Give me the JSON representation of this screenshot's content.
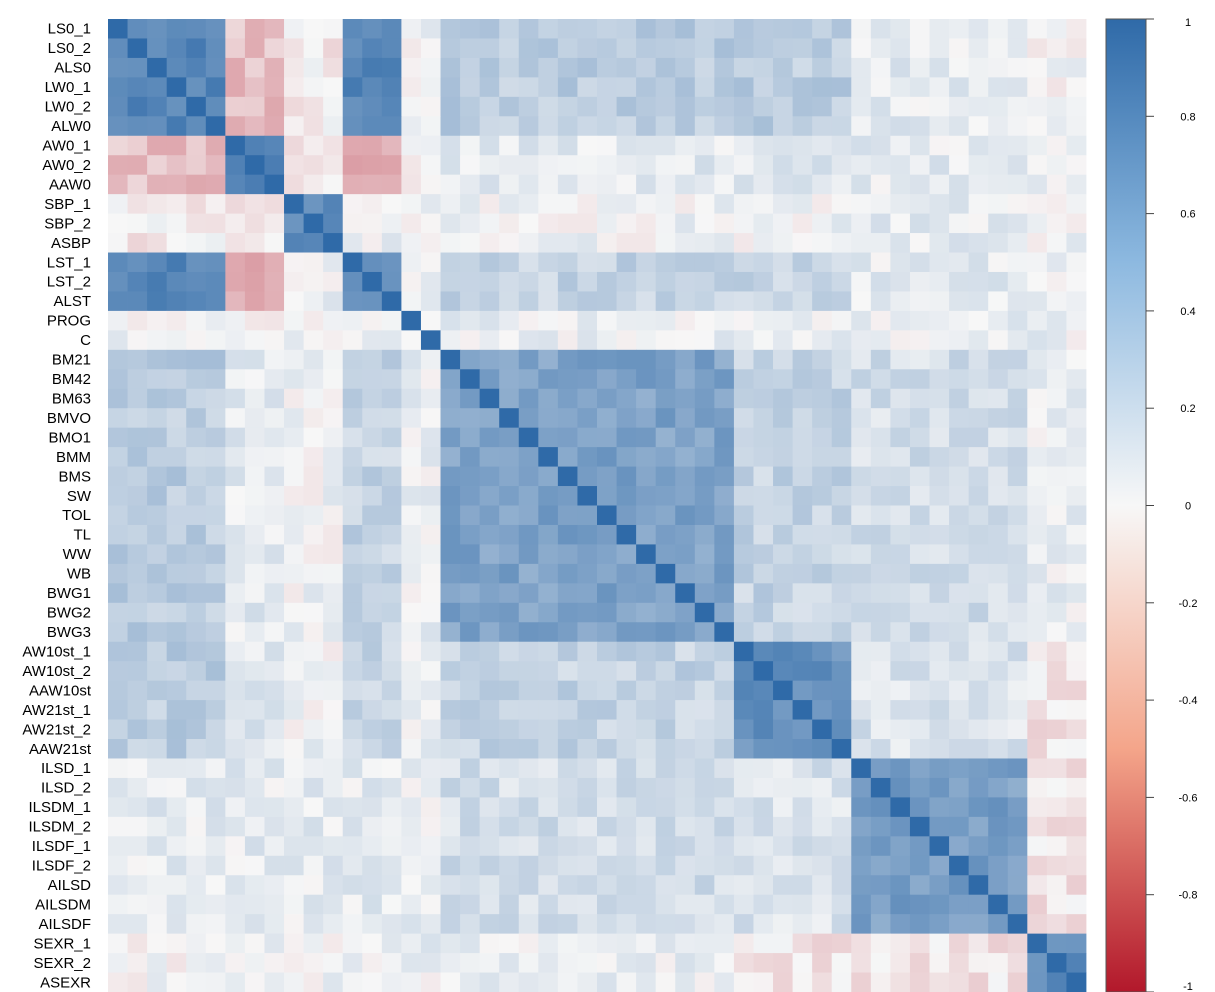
{
  "chart_data": {
    "type": "heatmap",
    "title": "",
    "xlabel": "",
    "ylabel": "",
    "row_labels": [
      "LS0_1",
      "LS0_2",
      "ALS0",
      "LW0_1",
      "LW0_2",
      "ALW0",
      "AW0_1",
      "AW0_2",
      "AAW0",
      "SBP_1",
      "SBP_2",
      "ASBP",
      "LST_1",
      "LST_2",
      "ALST",
      "PROG",
      "C",
      "BM21",
      "BM42",
      "BM63",
      "BMVO",
      "BMO1",
      "BMM",
      "BMS",
      "SW",
      "TOL",
      "TL",
      "WW",
      "WB",
      "BWG1",
      "BWG2",
      "BWG3",
      "AW10st_1",
      "AW10st_2",
      "AAW10st",
      "AW21st_1",
      "AW21st_2",
      "AAW21st",
      "ILSD_1",
      "ILSD_2",
      "ILSDM_1",
      "ILSDM_2",
      "ILSDF_1",
      "ILSDF_2",
      "AILSD",
      "AILSDM",
      "AILSDF",
      "SEXR_1",
      "SEXR_2",
      "ASEXR"
    ],
    "value_range": [
      -1,
      1
    ],
    "colorbar": {
      "ticks": [
        1,
        0.8,
        0.6,
        0.4,
        0.2,
        0,
        -0.2,
        -0.4,
        -0.6,
        -0.8,
        -1
      ],
      "tick_labels": [
        "1",
        "0.8",
        "0.6",
        "0.4",
        "0.2",
        "0",
        "-0.2",
        "-0.4",
        "-0.6",
        "-0.8",
        "-1"
      ],
      "colors": {
        "neg": "#b2182b",
        "mid": "#f7f7f7",
        "pos": "#2f6aa8"
      },
      "placement": "right"
    },
    "blocks": [
      {
        "rows": [
          0,
          5
        ],
        "cols": [
          0,
          5
        ],
        "value": 0.82
      },
      {
        "rows": [
          6,
          8
        ],
        "cols": [
          6,
          8
        ],
        "value": 0.78
      },
      {
        "rows": [
          9,
          11
        ],
        "cols": [
          9,
          11
        ],
        "value": 0.8
      },
      {
        "rows": [
          12,
          14
        ],
        "cols": [
          12,
          14
        ],
        "value": 0.8
      },
      {
        "rows": [
          0,
          5
        ],
        "cols": [
          12,
          14
        ],
        "value": 0.78
      },
      {
        "rows": [
          0,
          5
        ],
        "cols": [
          6,
          8
        ],
        "value": -0.25
      },
      {
        "rows": [
          6,
          8
        ],
        "cols": [
          12,
          14
        ],
        "value": -0.3
      },
      {
        "rows": [
          0,
          5
        ],
        "cols": [
          9,
          11
        ],
        "value": -0.05
      },
      {
        "rows": [
          6,
          8
        ],
        "cols": [
          9,
          11
        ],
        "value": -0.1
      },
      {
        "rows": [
          9,
          11
        ],
        "cols": [
          12,
          14
        ],
        "value": 0.05
      },
      {
        "rows": [
          0,
          14
        ],
        "cols": [
          15,
          16
        ],
        "value": 0.02
      },
      {
        "rows": [
          0,
          5
        ],
        "cols": [
          17,
          37
        ],
        "value": 0.3
      },
      {
        "rows": [
          12,
          14
        ],
        "cols": [
          17,
          37
        ],
        "value": 0.25
      },
      {
        "rows": [
          6,
          8
        ],
        "cols": [
          17,
          37
        ],
        "value": 0.1
      },
      {
        "rows": [
          9,
          11
        ],
        "cols": [
          17,
          37
        ],
        "value": 0.03
      },
      {
        "rows": [
          0,
          14
        ],
        "cols": [
          38,
          46
        ],
        "value": 0.08
      },
      {
        "rows": [
          0,
          14
        ],
        "cols": [
          47,
          49
        ],
        "value": 0.02
      },
      {
        "rows": [
          17,
          31
        ],
        "cols": [
          17,
          31
        ],
        "value": 0.6
      },
      {
        "rows": [
          17,
          31
        ],
        "cols": [
          32,
          37
        ],
        "value": 0.25
      },
      {
        "rows": [
          17,
          31
        ],
        "cols": [
          38,
          46
        ],
        "value": 0.18
      },
      {
        "rows": [
          32,
          37
        ],
        "cols": [
          32,
          37
        ],
        "value": 0.72
      },
      {
        "rows": [
          32,
          37
        ],
        "cols": [
          38,
          46
        ],
        "value": 0.15
      },
      {
        "rows": [
          38,
          46
        ],
        "cols": [
          38,
          46
        ],
        "value": 0.62
      },
      {
        "rows": [
          32,
          46
        ],
        "cols": [
          47,
          49
        ],
        "value": -0.08
      },
      {
        "rows": [
          47,
          49
        ],
        "cols": [
          47,
          49
        ],
        "value": 0.72
      },
      {
        "rows": [
          15,
          16
        ],
        "cols": [
          17,
          49
        ],
        "value": 0.05
      }
    ]
  }
}
